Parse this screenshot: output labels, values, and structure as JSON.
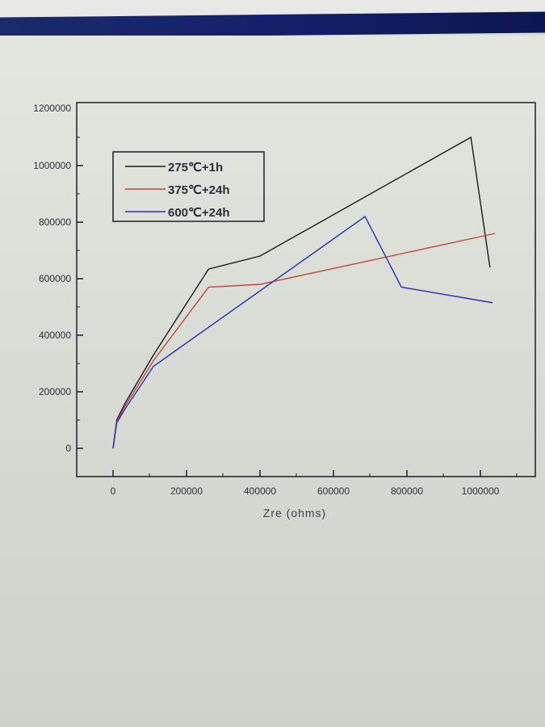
{
  "chart_data": {
    "type": "line",
    "title": "",
    "xlabel": "Zre (ohms)",
    "ylabel": "",
    "xlim": [
      -100000,
      1150000
    ],
    "ylim": [
      -100000,
      1200000
    ],
    "xticks": [
      0,
      200000,
      400000,
      600000,
      800000,
      1000000
    ],
    "xtick_labels": [
      "0",
      "200000",
      "400000",
      "600000",
      "800000",
      "1000000"
    ],
    "yticks": [
      0,
      200000,
      400000,
      600000,
      800000,
      1000000,
      1200000
    ],
    "ytick_labels": [
      "0",
      "200000",
      "400000",
      "600000",
      "800000",
      "1000000",
      "1200000"
    ],
    "legend_position": "top-left",
    "grid": false,
    "series": [
      {
        "name": "275℃+1h",
        "color": "#1a1a1a",
        "x": [
          0,
          10000,
          33000,
          110000,
          260000,
          400000,
          974000,
          1026000
        ],
        "y": [
          0,
          100000,
          160000,
          330000,
          634000,
          680000,
          1100000,
          640000
        ]
      },
      {
        "name": "375℃+24h",
        "color": "#c8463a",
        "x": [
          0,
          10000,
          33000,
          110000,
          260000,
          400000,
          1040000
        ],
        "y": [
          0,
          95000,
          150000,
          310000,
          570000,
          580000,
          760000
        ]
      },
      {
        "name": "600℃+24h",
        "color": "#2233bb",
        "x": [
          0,
          10000,
          33000,
          110000,
          686000,
          785000,
          1033000
        ],
        "y": [
          0,
          90000,
          140000,
          290000,
          820000,
          570000,
          515000
        ]
      }
    ]
  }
}
